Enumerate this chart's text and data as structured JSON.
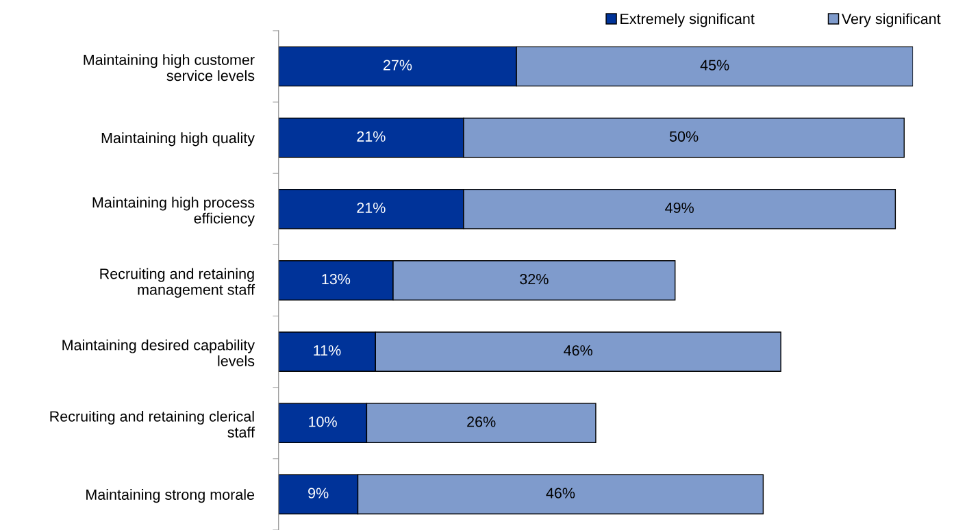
{
  "chart_data": {
    "type": "bar",
    "orientation": "horizontal",
    "stacked": true,
    "legend": "top right",
    "grid": false,
    "categories": [
      "Maintaining high customer\nservice levels",
      "Maintaining high quality",
      "Maintaining high process\nefficiency",
      "Recruiting and retaining\nmanagement staff",
      "Maintaining desired capability\nlevels",
      "Recruiting and retaining clerical\nstaff",
      "Maintaining strong morale"
    ],
    "series": [
      {
        "name": "Extremely significant",
        "color": "#003399",
        "values": [
          27,
          21,
          21,
          13,
          11,
          10,
          9
        ],
        "value_labels": [
          "27%",
          "21%",
          "21%",
          "13%",
          "11%",
          "10%",
          "9%"
        ]
      },
      {
        "name": "Very significant",
        "color": "#7f9bcc",
        "values": [
          45,
          50,
          49,
          32,
          46,
          26,
          46
        ],
        "value_labels": [
          "45%",
          "50%",
          "49%",
          "32%",
          "46%",
          "26%",
          "46%"
        ]
      }
    ]
  }
}
